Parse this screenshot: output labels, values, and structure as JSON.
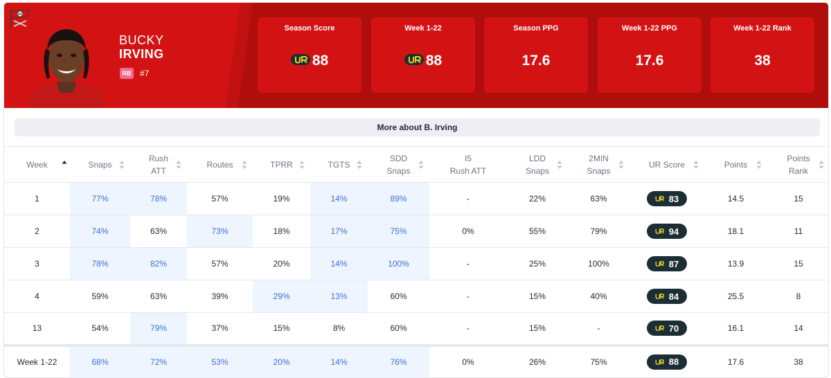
{
  "player": {
    "first_name": "BUCKY",
    "last_name": "IRVING",
    "position": "RB",
    "jersey": "#7",
    "team_logo_icon": "buccaneers-flag-icon",
    "colors": {
      "primary_red": "#d31313",
      "dark_red": "#b00d0d",
      "badge_pink": "#f06b8a"
    }
  },
  "stat_cards": [
    {
      "label": "Season Score",
      "value": "88",
      "has_ur_logo": true
    },
    {
      "label": "Week 1-22",
      "value": "88",
      "has_ur_logo": true
    },
    {
      "label": "Season PPG",
      "value": "17.6",
      "has_ur_logo": false
    },
    {
      "label": "Week 1-22 PPG",
      "value": "17.6",
      "has_ur_logo": false
    },
    {
      "label": "Week 1-22 Rank",
      "value": "38",
      "has_ur_logo": false
    }
  ],
  "more_button": {
    "label": "More about B. Irving"
  },
  "table": {
    "columns": [
      {
        "key": "week",
        "label": [
          "Week"
        ],
        "sort": "asc"
      },
      {
        "key": "snaps",
        "label": [
          "Snaps"
        ]
      },
      {
        "key": "rush_att",
        "label": [
          "Rush",
          "ATT"
        ]
      },
      {
        "key": "routes",
        "label": [
          "Routes"
        ]
      },
      {
        "key": "tprr",
        "label": [
          "TPRR"
        ]
      },
      {
        "key": "tgts",
        "label": [
          "TGTS"
        ]
      },
      {
        "key": "sdd_snaps",
        "label": [
          "SDD",
          "Snaps"
        ]
      },
      {
        "key": "i5_rush_att",
        "label": [
          "I5",
          "Rush ATT"
        ],
        "no_sort": true
      },
      {
        "key": "ldd_snaps",
        "label": [
          "LDD",
          "Snaps"
        ]
      },
      {
        "key": "two_min_snaps",
        "label": [
          "2MIN",
          "Snaps"
        ]
      },
      {
        "key": "ur_score",
        "label": [
          "UR Score"
        ]
      },
      {
        "key": "points",
        "label": [
          "Points"
        ]
      },
      {
        "key": "points_rank",
        "label": [
          "Points",
          "Rank"
        ]
      }
    ],
    "rows": [
      {
        "cells": [
          "1",
          "77%",
          "78%",
          "57%",
          "19%",
          "14%",
          "89%",
          "-",
          "22%",
          "63%",
          "83",
          "14.5",
          "15"
        ],
        "hl": [
          1,
          2,
          5,
          6
        ]
      },
      {
        "cells": [
          "2",
          "74%",
          "63%",
          "73%",
          "18%",
          "17%",
          "75%",
          "0%",
          "55%",
          "79%",
          "94",
          "18.1",
          "11"
        ],
        "hl": [
          1,
          3,
          5,
          6
        ]
      },
      {
        "cells": [
          "3",
          "78%",
          "82%",
          "57%",
          "20%",
          "14%",
          "100%",
          "-",
          "25%",
          "100%",
          "87",
          "13.9",
          "15"
        ],
        "hl": [
          1,
          2,
          5,
          6
        ]
      },
      {
        "cells": [
          "4",
          "59%",
          "63%",
          "39%",
          "29%",
          "13%",
          "60%",
          "-",
          "15%",
          "40%",
          "84",
          "25.5",
          "8"
        ],
        "hl": [
          4,
          5
        ]
      },
      {
        "cells": [
          "13",
          "54%",
          "79%",
          "37%",
          "15%",
          "8%",
          "60%",
          "-",
          "15%",
          "-",
          "70",
          "16.1",
          "14"
        ],
        "hl": [
          2
        ]
      }
    ],
    "total": {
      "cells": [
        "Week 1-22",
        "68%",
        "72%",
        "53%",
        "20%",
        "14%",
        "76%",
        "0%",
        "26%",
        "75%",
        "88",
        "17.6",
        "38"
      ],
      "hl": [
        1,
        2,
        3,
        4,
        5,
        6
      ]
    }
  }
}
